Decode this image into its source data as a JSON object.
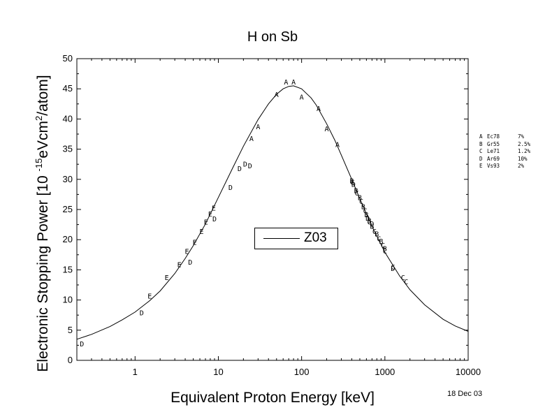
{
  "chart_data": {
    "type": "scatter",
    "title": "H on Sb",
    "xlabel": "Equivalent Proton Energy [keV]",
    "ylabel": "Electronic Stopping Power [10 -15eVcm2/atom]",
    "ylabel_parts": {
      "before": "Electronic Stopping Power [10 ",
      "sup1": "-15",
      "middle": "eVcm",
      "sup2": "2",
      "after": "/atom]"
    },
    "xscale": "log",
    "xlim": [
      0.2,
      10000
    ],
    "ylim": [
      0,
      50
    ],
    "x_ticks": [
      1,
      10,
      100,
      1000,
      10000
    ],
    "x_tick_labels": [
      "1",
      "10",
      "100",
      "1000",
      "10000"
    ],
    "y_ticks": [
      0,
      5,
      10,
      15,
      20,
      25,
      30,
      35,
      40,
      45,
      50
    ],
    "y_tick_labels": [
      "0",
      "5",
      "10",
      "15",
      "20",
      "25",
      "30",
      "35",
      "40",
      "45",
      "50"
    ],
    "grid": false,
    "legend_placement": "center",
    "curve": {
      "name": "Z03",
      "x": [
        0.2,
        0.3,
        0.5,
        0.7,
        1,
        1.5,
        2,
        3,
        4,
        5,
        7,
        10,
        15,
        20,
        30,
        40,
        50,
        60,
        70,
        80,
        100,
        130,
        150,
        200,
        250,
        300,
        400,
        500,
        700,
        1000,
        1500,
        2000,
        3000,
        5000,
        7000,
        10000
      ],
      "y": [
        3.5,
        4.3,
        5.6,
        6.7,
        8.0,
        9.9,
        11.5,
        14.4,
        16.9,
        19.0,
        22.6,
        27.0,
        32.0,
        35.5,
        39.9,
        42.5,
        44.1,
        45.0,
        45.4,
        45.5,
        45.0,
        43.5,
        42.3,
        39.2,
        36.5,
        34.0,
        30.0,
        26.8,
        22.2,
        17.9,
        14.0,
        11.7,
        9.2,
        6.8,
        5.7,
        4.8
      ]
    },
    "points": [
      {
        "label": "A",
        "x": 30,
        "y": 38.8
      },
      {
        "label": "A",
        "x": 25,
        "y": 36.8
      },
      {
        "label": "A",
        "x": 50,
        "y": 44.1
      },
      {
        "label": "A",
        "x": 65,
        "y": 46.2
      },
      {
        "label": "A",
        "x": 80,
        "y": 46.2
      },
      {
        "label": "A",
        "x": 100,
        "y": 43.7
      },
      {
        "label": "A",
        "x": 160,
        "y": 41.8
      },
      {
        "label": "A",
        "x": 200,
        "y": 38.4
      },
      {
        "label": "A",
        "x": 270,
        "y": 35.8
      },
      {
        "label": "B",
        "x": 400,
        "y": 29.8
      },
      {
        "label": "B",
        "x": 450,
        "y": 28.2
      },
      {
        "label": "B",
        "x": 500,
        "y": 27.0
      },
      {
        "label": "B",
        "x": 550,
        "y": 25.5
      },
      {
        "label": "B",
        "x": 600,
        "y": 24.2
      },
      {
        "label": "B",
        "x": 650,
        "y": 23.2
      },
      {
        "label": "B",
        "x": 700,
        "y": 22.3
      },
      {
        "label": "B",
        "x": 800,
        "y": 21.0
      },
      {
        "label": "B",
        "x": 900,
        "y": 19.8
      },
      {
        "label": "B",
        "x": 1000,
        "y": 18.6
      },
      {
        "label": "C",
        "x": 410,
        "y": 29.5
      },
      {
        "label": "C",
        "x": 460,
        "y": 27.8
      },
      {
        "label": "C",
        "x": 520,
        "y": 26.4
      },
      {
        "label": "C",
        "x": 580,
        "y": 24.8
      },
      {
        "label": "C",
        "x": 650,
        "y": 23.0
      },
      {
        "label": "C",
        "x": 750,
        "y": 21.4
      },
      {
        "label": "C",
        "x": 850,
        "y": 20.2
      },
      {
        "label": "C",
        "x": 950,
        "y": 19.1
      },
      {
        "label": "C",
        "x": 1000,
        "y": 18.2
      },
      {
        "label": "C",
        "x": 1250,
        "y": 15.5
      },
      {
        "label": "C",
        "x": 1650,
        "y": 13.8
      },
      {
        "label": "C",
        "x": 1800,
        "y": 13.1
      },
      {
        "label": "D",
        "x": 0.23,
        "y": 2.8
      },
      {
        "label": "D",
        "x": 1.2,
        "y": 7.9
      },
      {
        "label": "D",
        "x": 4.6,
        "y": 16.3
      },
      {
        "label": "D",
        "x": 9.0,
        "y": 23.5
      },
      {
        "label": "D",
        "x": 14,
        "y": 28.7
      },
      {
        "label": "D",
        "x": 18,
        "y": 31.8
      },
      {
        "label": "D",
        "x": 21,
        "y": 32.6
      },
      {
        "label": "D",
        "x": 24,
        "y": 32.3
      },
      {
        "label": "D",
        "x": 420,
        "y": 29.2
      },
      {
        "label": "D",
        "x": 620,
        "y": 23.6
      },
      {
        "label": "D",
        "x": 700,
        "y": 22.7
      },
      {
        "label": "D",
        "x": 1250,
        "y": 15.3
      },
      {
        "label": "E",
        "x": 1.5,
        "y": 10.7
      },
      {
        "label": "E",
        "x": 2.4,
        "y": 13.8
      },
      {
        "label": "E",
        "x": 3.4,
        "y": 15.9
      },
      {
        "label": "E",
        "x": 4.2,
        "y": 18.1
      },
      {
        "label": "E",
        "x": 5.2,
        "y": 19.6
      },
      {
        "label": "E",
        "x": 6.3,
        "y": 21.4
      },
      {
        "label": "E",
        "x": 7.1,
        "y": 23.0
      },
      {
        "label": "E",
        "x": 8.0,
        "y": 24.3
      },
      {
        "label": "E",
        "x": 8.8,
        "y": 25.3
      }
    ],
    "references": [
      {
        "letter": "A",
        "name": "Ec78",
        "err": "7%"
      },
      {
        "letter": "B",
        "name": "Gr55",
        "err": "2.5%"
      },
      {
        "letter": "C",
        "name": "Le71",
        "err": "1.2%"
      },
      {
        "letter": "D",
        "name": "Ar69",
        "err": "10%"
      },
      {
        "letter": "E",
        "name": "Vs93",
        "err": "2%"
      }
    ]
  },
  "date": "18 Dec 03"
}
